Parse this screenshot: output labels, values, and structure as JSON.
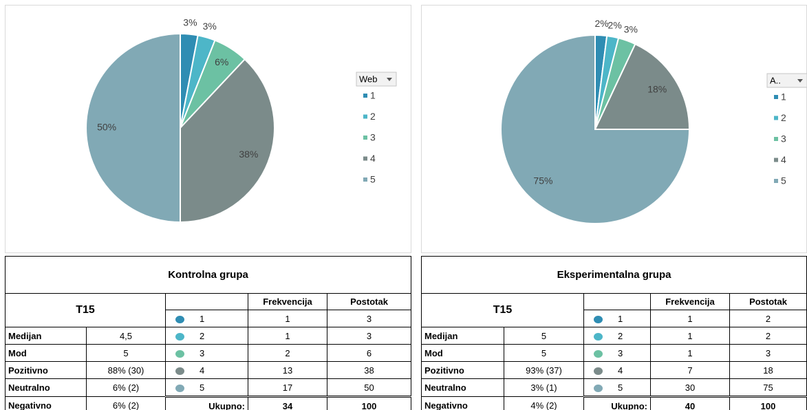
{
  "chart_data": [
    {
      "type": "pie",
      "legend_title": "Web",
      "categories": [
        "1",
        "2",
        "3",
        "4",
        "5"
      ],
      "values": [
        3,
        3,
        6,
        38,
        50
      ],
      "value_labels": [
        "3%",
        "3%",
        "6%",
        "38%",
        "50%"
      ],
      "colors": [
        "#2f8db3",
        "#4db6c8",
        "#6cc1a3",
        "#7b8b8a",
        "#81a9b5"
      ],
      "legend": "right"
    },
    {
      "type": "pie",
      "legend_title": "A..",
      "categories": [
        "1",
        "2",
        "3",
        "4",
        "5"
      ],
      "values": [
        2,
        2,
        3,
        18,
        75
      ],
      "value_labels": [
        "2%",
        "2%",
        "3%",
        "18%",
        "75%"
      ],
      "colors": [
        "#2f8db3",
        "#4db6c8",
        "#6cc1a3",
        "#7b8b8a",
        "#81a9b5"
      ],
      "legend": "right"
    }
  ],
  "tables": [
    {
      "title": "Kontrolna grupa",
      "header": "T15",
      "columns": [
        "Frekvencija",
        "Postotak"
      ],
      "stats": [
        {
          "label": "Medijan",
          "value": "4,5"
        },
        {
          "label": "Mod",
          "value": "5"
        },
        {
          "label": "Pozitivno",
          "value": "88% (30)"
        },
        {
          "label": "Neutralno",
          "value": "6% (2)"
        },
        {
          "label": "Negativno",
          "value": "6% (2)"
        }
      ],
      "rows": [
        {
          "category": "1",
          "frequency": 1,
          "percent": 3
        },
        {
          "category": "2",
          "frequency": 1,
          "percent": 3
        },
        {
          "category": "3",
          "frequency": 2,
          "percent": 6
        },
        {
          "category": "4",
          "frequency": 13,
          "percent": 38
        },
        {
          "category": "5",
          "frequency": 17,
          "percent": 50
        }
      ],
      "total_label": "Ukupno:",
      "total_frequency": 34,
      "total_percent": 100
    },
    {
      "title": "Eksperimentalna grupa",
      "header": "T15",
      "columns": [
        "Frekvencija",
        "Postotak"
      ],
      "stats": [
        {
          "label": "Medijan",
          "value": "5"
        },
        {
          "label": "Mod",
          "value": "5"
        },
        {
          "label": "Pozitivno",
          "value": "93% (37)"
        },
        {
          "label": "Neutralno",
          "value": "3% (1)"
        },
        {
          "label": "Negativno",
          "value": "4% (2)"
        }
      ],
      "rows": [
        {
          "category": "1",
          "frequency": 1,
          "percent": 2
        },
        {
          "category": "2",
          "frequency": 1,
          "percent": 2
        },
        {
          "category": "3",
          "frequency": 1,
          "percent": 3
        },
        {
          "category": "4",
          "frequency": 7,
          "percent": 18
        },
        {
          "category": "5",
          "frequency": 30,
          "percent": 75
        }
      ],
      "total_label": "Ukupno:",
      "total_frequency": 40,
      "total_percent": 100
    }
  ]
}
